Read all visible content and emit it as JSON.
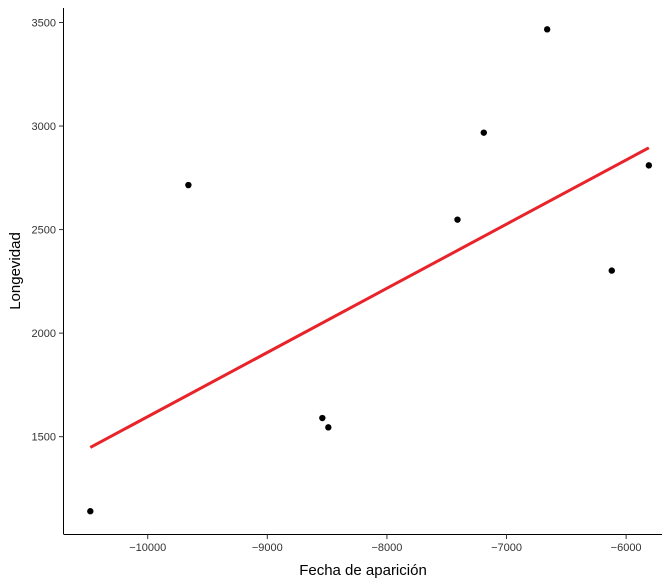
{
  "chart_data": {
    "type": "scatter",
    "xlabel": "Fecha de aparición",
    "ylabel": "Longevidad",
    "xlim": [
      -10700,
      -5700
    ],
    "ylim": [
      1030,
      3570
    ],
    "grid": false,
    "x_ticks": [
      -10000,
      -9000,
      -8000,
      -7000,
      -6000
    ],
    "x_tick_labels": [
      "−10000",
      "−9000",
      "−8000",
      "−7000",
      "−6000"
    ],
    "y_ticks": [
      1500,
      2000,
      2500,
      3000,
      3500
    ],
    "y_tick_labels": [
      "1500",
      "2000",
      "2500",
      "3000",
      "3500"
    ],
    "points": [
      {
        "x": -10480,
        "y": 1140
      },
      {
        "x": -9660,
        "y": 2715
      },
      {
        "x": -8540,
        "y": 1590
      },
      {
        "x": -8490,
        "y": 1545
      },
      {
        "x": -7410,
        "y": 2548
      },
      {
        "x": -7190,
        "y": 2968
      },
      {
        "x": -6660,
        "y": 3467
      },
      {
        "x": -6120,
        "y": 2302
      },
      {
        "x": -5810,
        "y": 2810
      }
    ],
    "trend_line": {
      "x": [
        -10480,
        -5810
      ],
      "y": [
        1448,
        2895
      ]
    },
    "colors": {
      "points": "#000000",
      "trend_line": "#e8232a",
      "axis": "#000000"
    }
  }
}
